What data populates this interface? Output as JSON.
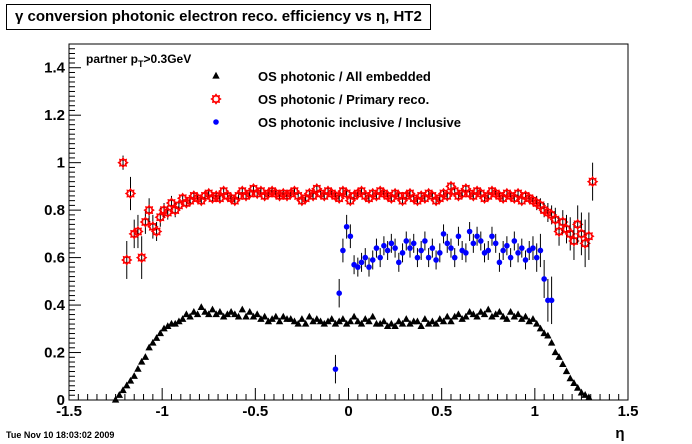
{
  "title": "γ conversion photonic electron reco. efficiency vs η, HT2",
  "footer": "Tue Nov 10 18:03:02 2009",
  "chart_data": {
    "type": "scatter",
    "title": "γ conversion photonic electron reco. efficiency vs η, HT2",
    "xlabel": "η",
    "ylabel": "",
    "xlim": [
      -1.5,
      1.5
    ],
    "ylim": [
      0,
      1.5
    ],
    "x_ticks": [
      "-1.5",
      "-1",
      "-0.5",
      "0",
      "0.5",
      "1",
      "1.5"
    ],
    "y_ticks": [
      "0",
      "0.2",
      "0.4",
      "0.6",
      "0.8",
      "1",
      "1.2",
      "1.4"
    ],
    "annotation": "partner p_T>0.3GeV",
    "grid": false,
    "legend_position": "top-center",
    "series": [
      {
        "name": "OS photonic / All embedded",
        "marker": "triangle",
        "color": "#000000",
        "x": [
          -1.25,
          -1.23,
          -1.21,
          -1.19,
          -1.17,
          -1.15,
          -1.13,
          -1.11,
          -1.09,
          -1.07,
          -1.05,
          -1.03,
          -1.01,
          -0.99,
          -0.97,
          -0.95,
          -0.93,
          -0.91,
          -0.89,
          -0.87,
          -0.85,
          -0.83,
          -0.81,
          -0.79,
          -0.77,
          -0.75,
          -0.73,
          -0.71,
          -0.69,
          -0.67,
          -0.65,
          -0.63,
          -0.61,
          -0.59,
          -0.57,
          -0.55,
          -0.53,
          -0.51,
          -0.49,
          -0.47,
          -0.45,
          -0.43,
          -0.41,
          -0.39,
          -0.37,
          -0.35,
          -0.33,
          -0.31,
          -0.29,
          -0.27,
          -0.25,
          -0.23,
          -0.21,
          -0.19,
          -0.17,
          -0.15,
          -0.13,
          -0.11,
          -0.09,
          -0.07,
          -0.05,
          -0.03,
          -0.01,
          0.01,
          0.03,
          0.05,
          0.07,
          0.09,
          0.11,
          0.13,
          0.15,
          0.17,
          0.19,
          0.21,
          0.23,
          0.25,
          0.27,
          0.29,
          0.31,
          0.33,
          0.35,
          0.37,
          0.39,
          0.41,
          0.43,
          0.45,
          0.47,
          0.49,
          0.51,
          0.53,
          0.55,
          0.57,
          0.59,
          0.61,
          0.63,
          0.65,
          0.67,
          0.69,
          0.71,
          0.73,
          0.75,
          0.77,
          0.79,
          0.81,
          0.83,
          0.85,
          0.87,
          0.89,
          0.91,
          0.93,
          0.95,
          0.97,
          0.99,
          1.01,
          1.03,
          1.05,
          1.07,
          1.09,
          1.11,
          1.13,
          1.15,
          1.17,
          1.19,
          1.21,
          1.23,
          1.25,
          1.27,
          1.29
        ],
        "y": [
          0.0,
          0.02,
          0.04,
          0.06,
          0.08,
          0.1,
          0.13,
          0.16,
          0.18,
          0.22,
          0.24,
          0.26,
          0.28,
          0.3,
          0.31,
          0.32,
          0.32,
          0.33,
          0.34,
          0.36,
          0.35,
          0.37,
          0.36,
          0.39,
          0.37,
          0.36,
          0.38,
          0.36,
          0.37,
          0.35,
          0.36,
          0.37,
          0.36,
          0.35,
          0.38,
          0.35,
          0.37,
          0.35,
          0.36,
          0.34,
          0.35,
          0.33,
          0.34,
          0.35,
          0.33,
          0.35,
          0.34,
          0.34,
          0.33,
          0.32,
          0.34,
          0.32,
          0.35,
          0.33,
          0.34,
          0.33,
          0.32,
          0.33,
          0.34,
          0.32,
          0.33,
          0.34,
          0.32,
          0.33,
          0.35,
          0.33,
          0.32,
          0.34,
          0.33,
          0.35,
          0.32,
          0.32,
          0.33,
          0.31,
          0.32,
          0.31,
          0.33,
          0.32,
          0.34,
          0.32,
          0.33,
          0.33,
          0.31,
          0.34,
          0.32,
          0.33,
          0.32,
          0.34,
          0.33,
          0.35,
          0.33,
          0.35,
          0.36,
          0.34,
          0.35,
          0.37,
          0.36,
          0.35,
          0.37,
          0.36,
          0.38,
          0.35,
          0.36,
          0.37,
          0.35,
          0.34,
          0.37,
          0.35,
          0.36,
          0.34,
          0.35,
          0.33,
          0.34,
          0.32,
          0.3,
          0.28,
          0.27,
          0.24,
          0.2,
          0.18,
          0.15,
          0.12,
          0.09,
          0.07,
          0.05,
          0.03,
          0.02,
          0.01
        ]
      },
      {
        "name": "OS photonic / Primary reco.",
        "marker": "open-star",
        "color": "#ff0000",
        "x": [
          -1.21,
          -1.19,
          -1.17,
          -1.15,
          -1.13,
          -1.11,
          -1.09,
          -1.07,
          -1.05,
          -1.03,
          -1.01,
          -0.99,
          -0.97,
          -0.95,
          -0.93,
          -0.91,
          -0.89,
          -0.87,
          -0.85,
          -0.83,
          -0.81,
          -0.79,
          -0.77,
          -0.75,
          -0.73,
          -0.71,
          -0.69,
          -0.67,
          -0.65,
          -0.63,
          -0.61,
          -0.59,
          -0.57,
          -0.55,
          -0.53,
          -0.51,
          -0.49,
          -0.47,
          -0.45,
          -0.43,
          -0.41,
          -0.39,
          -0.37,
          -0.35,
          -0.33,
          -0.31,
          -0.29,
          -0.27,
          -0.25,
          -0.23,
          -0.21,
          -0.19,
          -0.17,
          -0.15,
          -0.13,
          -0.11,
          -0.09,
          -0.07,
          -0.05,
          -0.03,
          -0.01,
          0.01,
          0.03,
          0.05,
          0.07,
          0.09,
          0.11,
          0.13,
          0.15,
          0.17,
          0.19,
          0.21,
          0.23,
          0.25,
          0.27,
          0.29,
          0.31,
          0.33,
          0.35,
          0.37,
          0.39,
          0.41,
          0.43,
          0.45,
          0.47,
          0.49,
          0.51,
          0.53,
          0.55,
          0.57,
          0.59,
          0.61,
          0.63,
          0.65,
          0.67,
          0.69,
          0.71,
          0.73,
          0.75,
          0.77,
          0.79,
          0.81,
          0.83,
          0.85,
          0.87,
          0.89,
          0.91,
          0.93,
          0.95,
          0.97,
          0.99,
          1.01,
          1.03,
          1.05,
          1.07,
          1.09,
          1.11,
          1.13,
          1.15,
          1.17,
          1.19,
          1.21,
          1.23,
          1.25,
          1.27,
          1.29,
          1.31
        ],
        "y": [
          1.0,
          0.59,
          0.87,
          0.7,
          0.71,
          0.6,
          0.75,
          0.8,
          0.73,
          0.71,
          0.77,
          0.8,
          0.79,
          0.83,
          0.8,
          0.82,
          0.85,
          0.83,
          0.84,
          0.86,
          0.85,
          0.84,
          0.86,
          0.87,
          0.85,
          0.86,
          0.85,
          0.88,
          0.86,
          0.85,
          0.84,
          0.86,
          0.88,
          0.86,
          0.87,
          0.89,
          0.87,
          0.88,
          0.86,
          0.87,
          0.88,
          0.87,
          0.86,
          0.87,
          0.86,
          0.87,
          0.88,
          0.86,
          0.84,
          0.85,
          0.87,
          0.86,
          0.89,
          0.87,
          0.86,
          0.88,
          0.87,
          0.86,
          0.85,
          0.88,
          0.87,
          0.84,
          0.86,
          0.87,
          0.88,
          0.86,
          0.85,
          0.87,
          0.86,
          0.88,
          0.87,
          0.86,
          0.85,
          0.87,
          0.86,
          0.84,
          0.86,
          0.87,
          0.85,
          0.84,
          0.86,
          0.85,
          0.87,
          0.86,
          0.84,
          0.85,
          0.87,
          0.86,
          0.9,
          0.88,
          0.86,
          0.87,
          0.89,
          0.87,
          0.86,
          0.88,
          0.87,
          0.85,
          0.86,
          0.88,
          0.87,
          0.86,
          0.85,
          0.87,
          0.86,
          0.85,
          0.87,
          0.84,
          0.86,
          0.85,
          0.84,
          0.83,
          0.82,
          0.8,
          0.79,
          0.78,
          0.76,
          0.71,
          0.75,
          0.72,
          0.7,
          0.67,
          0.74,
          0.7,
          0.66,
          0.69,
          0.92
        ],
        "y_err": [
          0.03,
          0.08,
          0.07,
          0.06,
          0.07,
          0.09,
          0.05,
          0.05,
          0.05,
          0.04,
          0.04,
          0.03,
          0.03,
          0.03,
          0.03,
          0.02,
          0.02,
          0.02,
          0.02,
          0.02,
          0.02,
          0.02,
          0.02,
          0.02,
          0.02,
          0.02,
          0.02,
          0.02,
          0.02,
          0.02,
          0.02,
          0.02,
          0.02,
          0.02,
          0.02,
          0.02,
          0.02,
          0.02,
          0.02,
          0.02,
          0.02,
          0.02,
          0.02,
          0.02,
          0.02,
          0.02,
          0.02,
          0.02,
          0.02,
          0.02,
          0.02,
          0.02,
          0.02,
          0.02,
          0.02,
          0.02,
          0.02,
          0.02,
          0.02,
          0.02,
          0.02,
          0.02,
          0.02,
          0.02,
          0.02,
          0.02,
          0.02,
          0.02,
          0.02,
          0.02,
          0.02,
          0.02,
          0.02,
          0.02,
          0.02,
          0.02,
          0.02,
          0.02,
          0.02,
          0.02,
          0.02,
          0.02,
          0.02,
          0.02,
          0.02,
          0.02,
          0.02,
          0.02,
          0.02,
          0.02,
          0.02,
          0.02,
          0.02,
          0.02,
          0.02,
          0.02,
          0.02,
          0.02,
          0.02,
          0.02,
          0.02,
          0.02,
          0.02,
          0.02,
          0.02,
          0.02,
          0.02,
          0.02,
          0.02,
          0.02,
          0.02,
          0.03,
          0.03,
          0.03,
          0.04,
          0.04,
          0.05,
          0.06,
          0.05,
          0.06,
          0.07,
          0.08,
          0.08,
          0.09,
          0.1,
          0.1,
          0.08
        ]
      },
      {
        "name": "OS photonic inclusive / Inclusive",
        "marker": "filled-circle",
        "color": "#0000ff",
        "x": [
          -0.07,
          -0.05,
          -0.03,
          -0.01,
          0.01,
          0.03,
          0.05,
          0.07,
          0.09,
          0.11,
          0.13,
          0.15,
          0.17,
          0.19,
          0.21,
          0.23,
          0.25,
          0.27,
          0.29,
          0.31,
          0.33,
          0.35,
          0.37,
          0.39,
          0.41,
          0.43,
          0.45,
          0.47,
          0.49,
          0.51,
          0.53,
          0.55,
          0.57,
          0.59,
          0.61,
          0.63,
          0.65,
          0.67,
          0.69,
          0.71,
          0.73,
          0.75,
          0.77,
          0.79,
          0.81,
          0.83,
          0.85,
          0.87,
          0.89,
          0.91,
          0.93,
          0.95,
          0.97,
          0.99,
          1.01,
          1.03,
          1.05,
          1.07,
          1.09
        ],
        "y": [
          0.13,
          0.45,
          0.63,
          0.73,
          0.69,
          0.57,
          0.56,
          0.58,
          0.6,
          0.56,
          0.59,
          0.64,
          0.6,
          0.65,
          0.63,
          0.66,
          0.64,
          0.58,
          0.62,
          0.67,
          0.64,
          0.66,
          0.6,
          0.63,
          0.67,
          0.6,
          0.64,
          0.59,
          0.62,
          0.7,
          0.66,
          0.64,
          0.6,
          0.69,
          0.63,
          0.62,
          0.71,
          0.66,
          0.69,
          0.67,
          0.62,
          0.63,
          0.69,
          0.66,
          0.58,
          0.63,
          0.65,
          0.6,
          0.67,
          0.62,
          0.64,
          0.59,
          0.63,
          0.64,
          0.6,
          0.63,
          0.51,
          0.42,
          0.42
        ],
        "y_err": [
          0.06,
          0.06,
          0.05,
          0.05,
          0.05,
          0.04,
          0.04,
          0.04,
          0.04,
          0.04,
          0.04,
          0.04,
          0.04,
          0.04,
          0.04,
          0.04,
          0.04,
          0.04,
          0.04,
          0.04,
          0.04,
          0.04,
          0.04,
          0.04,
          0.04,
          0.04,
          0.04,
          0.04,
          0.04,
          0.04,
          0.04,
          0.04,
          0.04,
          0.04,
          0.04,
          0.04,
          0.04,
          0.04,
          0.04,
          0.04,
          0.04,
          0.04,
          0.04,
          0.04,
          0.04,
          0.04,
          0.04,
          0.04,
          0.04,
          0.04,
          0.04,
          0.04,
          0.04,
          0.05,
          0.06,
          0.07,
          0.08,
          0.09,
          0.1
        ]
      }
    ]
  }
}
